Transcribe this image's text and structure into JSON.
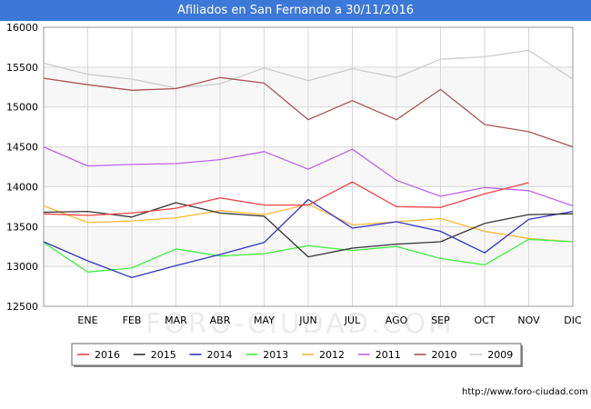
{
  "watermark": "FORO-CIUDAD.COM",
  "source": "http://www.foro-ciudad.com",
  "chart_data": {
    "type": "line",
    "title": "Afiliados en San Fernando a 30/11/2016",
    "xlabel": "",
    "ylabel": "",
    "categories": [
      "",
      "ENE",
      "FEB",
      "MAR",
      "ABR",
      "MAY",
      "JUN",
      "JUL",
      "AGO",
      "SEP",
      "OCT",
      "NOV",
      "DIC"
    ],
    "yticks": [
      12500,
      13000,
      13500,
      14000,
      14500,
      15000,
      15500,
      16000
    ],
    "ylim": [
      12500,
      16000
    ],
    "grid": true,
    "legend_position": "bottom",
    "series": [
      {
        "name": "2016",
        "color": "#ee4444",
        "values": [
          13660,
          13640,
          13670,
          13730,
          13860,
          13770,
          13770,
          14060,
          13750,
          13740,
          13910,
          14050,
          null
        ]
      },
      {
        "name": "2015",
        "color": "#333333",
        "values": [
          13680,
          13690,
          13620,
          13800,
          13670,
          13630,
          13120,
          13230,
          13280,
          13310,
          13540,
          13650,
          13660
        ]
      },
      {
        "name": "2014",
        "color": "#3333cc",
        "values": [
          13310,
          13070,
          12860,
          13010,
          13150,
          13300,
          13840,
          13480,
          13560,
          13440,
          13170,
          13590,
          13690
        ]
      },
      {
        "name": "2013",
        "color": "#44ee44",
        "values": [
          13300,
          12930,
          12980,
          13220,
          13130,
          13160,
          13260,
          13200,
          13250,
          13100,
          13020,
          13340,
          13310
        ]
      },
      {
        "name": "2012",
        "color": "#ffb733",
        "values": [
          13760,
          13550,
          13570,
          13610,
          13700,
          13650,
          13780,
          13520,
          13560,
          13600,
          13440,
          13350,
          13310
        ]
      },
      {
        "name": "2011",
        "color": "#bb66ee",
        "values": [
          14500,
          14260,
          14280,
          14290,
          14340,
          14440,
          14220,
          14470,
          14080,
          13880,
          13990,
          13950,
          13760
        ]
      },
      {
        "name": "2010",
        "color": "#aa5555",
        "values": [
          15360,
          15280,
          15210,
          15230,
          15370,
          15300,
          14840,
          15080,
          14840,
          15220,
          14780,
          14690,
          14500
        ]
      },
      {
        "name": "2009",
        "color": "#cccccc",
        "values": [
          15550,
          15410,
          15350,
          15240,
          15290,
          15490,
          15330,
          15480,
          15370,
          15600,
          15630,
          15710,
          15350
        ]
      }
    ]
  }
}
